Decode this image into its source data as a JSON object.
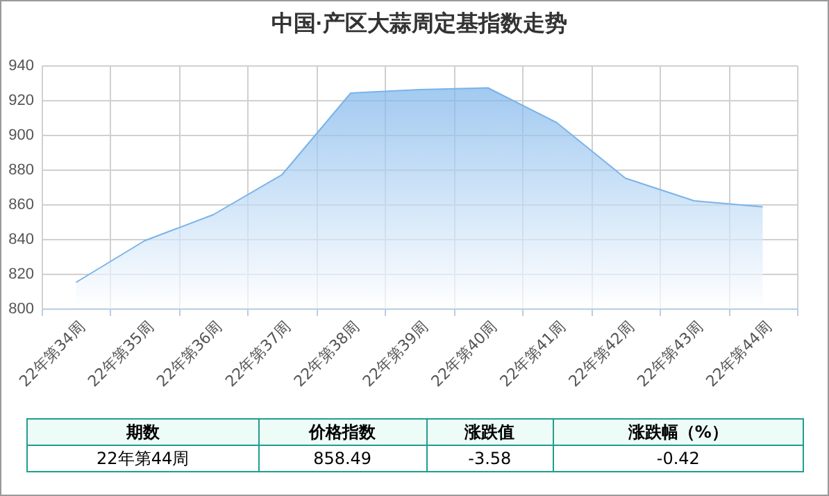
{
  "chart_data": {
    "type": "area",
    "title": "中国·产区大蒜周定基指数走势",
    "categories": [
      "22年第34周",
      "22年第35周",
      "22年第36周",
      "22年第37周",
      "22年第38周",
      "22年第39周",
      "22年第40周",
      "22年第41周",
      "22年第42周",
      "22年第43周",
      "22年第44周"
    ],
    "series": [
      {
        "color": "#7ab3ea",
        "values": [
          815,
          839,
          854,
          877,
          924,
          926,
          927,
          907,
          875,
          862,
          858.49
        ]
      }
    ],
    "ylim": [
      800,
      940
    ],
    "yticks": [
      800,
      820,
      840,
      860,
      880,
      900,
      920,
      940
    ],
    "grid": true,
    "annotations": [
      "期数",
      "价格指数",
      "涨跌值",
      "涨跌幅（%）",
      "22年第44周",
      "858.49",
      "-3.58",
      "-0.42"
    ]
  }
}
